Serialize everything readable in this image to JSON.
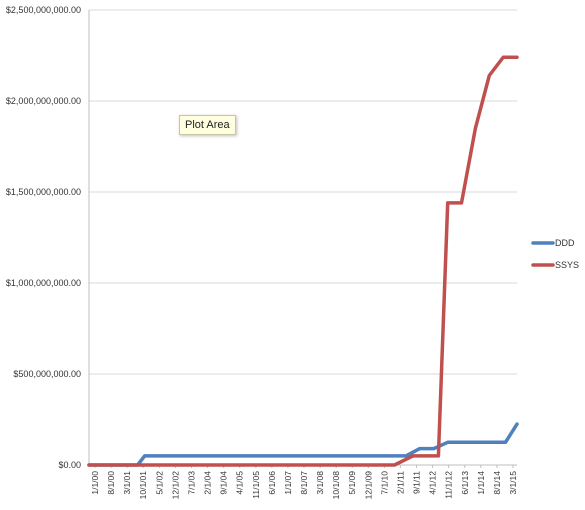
{
  "chart_data": {
    "type": "line",
    "title": "",
    "xlabel": "",
    "ylabel": "",
    "ylim": [
      0,
      2500000000
    ],
    "yticks": [
      0,
      500000000,
      1000000000,
      1500000000,
      2000000000,
      2500000000
    ],
    "ytick_labels": [
      "$0.00",
      "$500,000,000.00",
      "$1,000,000,000.00",
      "$1,500,000,000.00",
      "$2,000,000,000.00",
      "$2,500,000,000.00"
    ],
    "x_labels": [
      "1/1/00",
      "8/1/00",
      "3/1/01",
      "10/1/01",
      "5/1/02",
      "12/1/02",
      "7/1/03",
      "2/1/04",
      "9/1/04",
      "4/1/05",
      "11/1/05",
      "6/1/06",
      "1/1/07",
      "8/1/07",
      "3/1/08",
      "10/1/08",
      "5/1/09",
      "12/1/09",
      "7/1/10",
      "2/1/11",
      "9/1/11",
      "4/1/12",
      "11/1/12",
      "6/1/13",
      "1/1/14",
      "8/1/14",
      "3/1/15"
    ],
    "x_start": "2000-01-01",
    "x_end": "2015-06-01",
    "grid": true,
    "legend_position": "right",
    "series": [
      {
        "name": "DDD",
        "color": "#4f81bd",
        "points": [
          [
            "2000-01-01",
            0
          ],
          [
            "2001-10-01",
            0
          ],
          [
            "2002-01-01",
            50000000
          ],
          [
            "2011-06-01",
            50000000
          ],
          [
            "2011-12-01",
            90000000
          ],
          [
            "2012-06-01",
            90000000
          ],
          [
            "2012-12-01",
            125000000
          ],
          [
            "2015-01-01",
            125000000
          ],
          [
            "2015-06-01",
            225000000
          ]
        ]
      },
      {
        "name": "SSYS",
        "color": "#c0504d",
        "points": [
          [
            "2000-01-01",
            0
          ],
          [
            "2011-01-01",
            0
          ],
          [
            "2011-09-01",
            50000000
          ],
          [
            "2012-08-01",
            50000000
          ],
          [
            "2012-12-01",
            1440000000
          ],
          [
            "2013-06-01",
            1440000000
          ],
          [
            "2013-12-01",
            1850000000
          ],
          [
            "2014-06-01",
            2140000000
          ],
          [
            "2014-12-01",
            2240000000
          ],
          [
            "2015-06-01",
            2240000000
          ]
        ]
      }
    ]
  },
  "tooltip": {
    "text": "Plot Area"
  }
}
